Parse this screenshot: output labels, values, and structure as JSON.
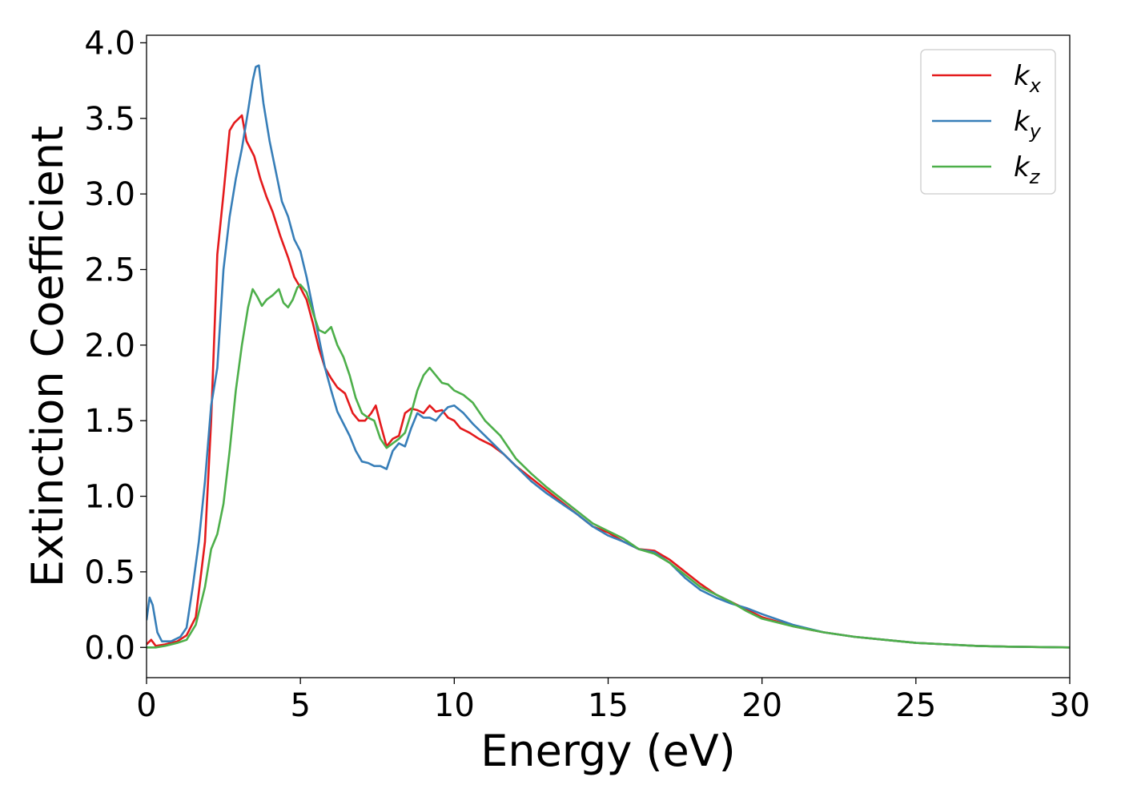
{
  "chart_data": {
    "type": "line",
    "xlabel": "Energy (eV)",
    "ylabel": "Extinction Coefficient",
    "xlim": [
      0,
      30
    ],
    "ylim": [
      -0.2,
      4.05
    ],
    "xticks": [
      "0",
      "5",
      "10",
      "15",
      "20",
      "25",
      "30"
    ],
    "yticks": [
      "0.0",
      "0.5",
      "1.0",
      "1.5",
      "2.0",
      "2.5",
      "3.0",
      "3.5",
      "4.0"
    ],
    "grid": false,
    "legend_position": "top-right",
    "series": [
      {
        "name": "k",
        "subscript": "x",
        "color": "#e41a1c",
        "points": [
          [
            0,
            0.02
          ],
          [
            0.15,
            0.05
          ],
          [
            0.3,
            0.01
          ],
          [
            0.6,
            0.02
          ],
          [
            1.0,
            0.04
          ],
          [
            1.3,
            0.08
          ],
          [
            1.6,
            0.2
          ],
          [
            1.9,
            0.7
          ],
          [
            2.1,
            1.5
          ],
          [
            2.3,
            2.6
          ],
          [
            2.5,
            3.0
          ],
          [
            2.7,
            3.42
          ],
          [
            2.85,
            3.47
          ],
          [
            3.0,
            3.5
          ],
          [
            3.1,
            3.52
          ],
          [
            3.25,
            3.35
          ],
          [
            3.5,
            3.25
          ],
          [
            3.7,
            3.1
          ],
          [
            3.9,
            2.98
          ],
          [
            4.1,
            2.88
          ],
          [
            4.35,
            2.72
          ],
          [
            4.6,
            2.58
          ],
          [
            4.8,
            2.45
          ],
          [
            5.0,
            2.38
          ],
          [
            5.2,
            2.3
          ],
          [
            5.4,
            2.15
          ],
          [
            5.6,
            1.98
          ],
          [
            5.8,
            1.85
          ],
          [
            6.0,
            1.78
          ],
          [
            6.2,
            1.72
          ],
          [
            6.45,
            1.68
          ],
          [
            6.7,
            1.55
          ],
          [
            6.9,
            1.5
          ],
          [
            7.1,
            1.5
          ],
          [
            7.3,
            1.55
          ],
          [
            7.45,
            1.6
          ],
          [
            7.6,
            1.48
          ],
          [
            7.8,
            1.33
          ],
          [
            8.0,
            1.38
          ],
          [
            8.2,
            1.4
          ],
          [
            8.4,
            1.55
          ],
          [
            8.6,
            1.58
          ],
          [
            8.8,
            1.57
          ],
          [
            9.0,
            1.55
          ],
          [
            9.2,
            1.6
          ],
          [
            9.4,
            1.56
          ],
          [
            9.6,
            1.57
          ],
          [
            9.8,
            1.52
          ],
          [
            10.0,
            1.5
          ],
          [
            10.2,
            1.45
          ],
          [
            10.5,
            1.42
          ],
          [
            10.8,
            1.38
          ],
          [
            11.2,
            1.34
          ],
          [
            11.6,
            1.28
          ],
          [
            12.0,
            1.2
          ],
          [
            12.5,
            1.12
          ],
          [
            13.0,
            1.04
          ],
          [
            13.5,
            0.96
          ],
          [
            14.0,
            0.88
          ],
          [
            14.5,
            0.8
          ],
          [
            15.0,
            0.76
          ],
          [
            15.5,
            0.7
          ],
          [
            16.0,
            0.65
          ],
          [
            16.5,
            0.64
          ],
          [
            17.0,
            0.58
          ],
          [
            17.5,
            0.5
          ],
          [
            18.0,
            0.42
          ],
          [
            18.5,
            0.35
          ],
          [
            19.0,
            0.3
          ],
          [
            19.5,
            0.25
          ],
          [
            20.0,
            0.2
          ],
          [
            21.0,
            0.14
          ],
          [
            22.0,
            0.1
          ],
          [
            23.0,
            0.07
          ],
          [
            24.0,
            0.05
          ],
          [
            25.0,
            0.03
          ],
          [
            26.0,
            0.02
          ],
          [
            27.0,
            0.01
          ],
          [
            28.0,
            0.005
          ],
          [
            30.0,
            0.0
          ]
        ]
      },
      {
        "name": "k",
        "subscript": "y",
        "color": "#377eb8",
        "points": [
          [
            0,
            0.18
          ],
          [
            0.1,
            0.33
          ],
          [
            0.2,
            0.28
          ],
          [
            0.35,
            0.1
          ],
          [
            0.5,
            0.04
          ],
          [
            0.8,
            0.04
          ],
          [
            1.1,
            0.07
          ],
          [
            1.3,
            0.13
          ],
          [
            1.5,
            0.4
          ],
          [
            1.7,
            0.7
          ],
          [
            1.9,
            1.1
          ],
          [
            2.1,
            1.6
          ],
          [
            2.3,
            1.85
          ],
          [
            2.5,
            2.5
          ],
          [
            2.7,
            2.85
          ],
          [
            2.9,
            3.1
          ],
          [
            3.1,
            3.3
          ],
          [
            3.3,
            3.55
          ],
          [
            3.45,
            3.75
          ],
          [
            3.55,
            3.84
          ],
          [
            3.65,
            3.85
          ],
          [
            3.8,
            3.6
          ],
          [
            4.0,
            3.35
          ],
          [
            4.2,
            3.15
          ],
          [
            4.4,
            2.95
          ],
          [
            4.6,
            2.85
          ],
          [
            4.8,
            2.7
          ],
          [
            5.0,
            2.62
          ],
          [
            5.2,
            2.45
          ],
          [
            5.4,
            2.25
          ],
          [
            5.6,
            2.05
          ],
          [
            5.8,
            1.85
          ],
          [
            6.0,
            1.7
          ],
          [
            6.2,
            1.56
          ],
          [
            6.4,
            1.48
          ],
          [
            6.6,
            1.4
          ],
          [
            6.8,
            1.3
          ],
          [
            7.0,
            1.23
          ],
          [
            7.2,
            1.22
          ],
          [
            7.4,
            1.2
          ],
          [
            7.6,
            1.2
          ],
          [
            7.8,
            1.18
          ],
          [
            8.0,
            1.3
          ],
          [
            8.2,
            1.35
          ],
          [
            8.4,
            1.33
          ],
          [
            8.6,
            1.45
          ],
          [
            8.8,
            1.55
          ],
          [
            9.0,
            1.52
          ],
          [
            9.2,
            1.52
          ],
          [
            9.4,
            1.5
          ],
          [
            9.6,
            1.55
          ],
          [
            9.8,
            1.59
          ],
          [
            10.0,
            1.6
          ],
          [
            10.3,
            1.55
          ],
          [
            10.6,
            1.48
          ],
          [
            11.0,
            1.4
          ],
          [
            11.5,
            1.3
          ],
          [
            12.0,
            1.2
          ],
          [
            12.5,
            1.1
          ],
          [
            13.0,
            1.02
          ],
          [
            13.5,
            0.95
          ],
          [
            14.0,
            0.88
          ],
          [
            14.5,
            0.8
          ],
          [
            15.0,
            0.74
          ],
          [
            15.5,
            0.7
          ],
          [
            16.0,
            0.65
          ],
          [
            16.5,
            0.63
          ],
          [
            17.0,
            0.56
          ],
          [
            17.5,
            0.46
          ],
          [
            18.0,
            0.38
          ],
          [
            18.5,
            0.33
          ],
          [
            19.0,
            0.29
          ],
          [
            19.5,
            0.26
          ],
          [
            20.0,
            0.22
          ],
          [
            21.0,
            0.15
          ],
          [
            22.0,
            0.1
          ],
          [
            23.0,
            0.07
          ],
          [
            24.0,
            0.05
          ],
          [
            25.0,
            0.03
          ],
          [
            26.0,
            0.02
          ],
          [
            27.0,
            0.01
          ],
          [
            28.0,
            0.005
          ],
          [
            30.0,
            0.0
          ]
        ]
      },
      {
        "name": "k",
        "subscript": "z",
        "color": "#4daf4a",
        "points": [
          [
            0,
            0.0
          ],
          [
            0.3,
            0.0
          ],
          [
            0.6,
            0.01
          ],
          [
            1.0,
            0.03
          ],
          [
            1.3,
            0.05
          ],
          [
            1.6,
            0.15
          ],
          [
            1.9,
            0.4
          ],
          [
            2.1,
            0.65
          ],
          [
            2.3,
            0.75
          ],
          [
            2.5,
            0.95
          ],
          [
            2.7,
            1.3
          ],
          [
            2.9,
            1.7
          ],
          [
            3.1,
            2.0
          ],
          [
            3.3,
            2.25
          ],
          [
            3.45,
            2.37
          ],
          [
            3.6,
            2.32
          ],
          [
            3.75,
            2.26
          ],
          [
            3.9,
            2.3
          ],
          [
            4.1,
            2.33
          ],
          [
            4.3,
            2.37
          ],
          [
            4.45,
            2.28
          ],
          [
            4.6,
            2.25
          ],
          [
            4.75,
            2.3
          ],
          [
            4.9,
            2.38
          ],
          [
            5.0,
            2.4
          ],
          [
            5.2,
            2.35
          ],
          [
            5.4,
            2.22
          ],
          [
            5.6,
            2.1
          ],
          [
            5.8,
            2.08
          ],
          [
            6.0,
            2.12
          ],
          [
            6.2,
            2.0
          ],
          [
            6.4,
            1.92
          ],
          [
            6.6,
            1.8
          ],
          [
            6.8,
            1.65
          ],
          [
            7.0,
            1.55
          ],
          [
            7.2,
            1.52
          ],
          [
            7.4,
            1.5
          ],
          [
            7.6,
            1.38
          ],
          [
            7.8,
            1.32
          ],
          [
            8.0,
            1.35
          ],
          [
            8.2,
            1.38
          ],
          [
            8.4,
            1.42
          ],
          [
            8.6,
            1.55
          ],
          [
            8.8,
            1.7
          ],
          [
            9.0,
            1.8
          ],
          [
            9.2,
            1.85
          ],
          [
            9.4,
            1.8
          ],
          [
            9.6,
            1.75
          ],
          [
            9.8,
            1.74
          ],
          [
            10.0,
            1.7
          ],
          [
            10.3,
            1.67
          ],
          [
            10.6,
            1.62
          ],
          [
            11.0,
            1.5
          ],
          [
            11.5,
            1.4
          ],
          [
            12.0,
            1.25
          ],
          [
            12.5,
            1.15
          ],
          [
            13.0,
            1.06
          ],
          [
            13.5,
            0.98
          ],
          [
            14.0,
            0.9
          ],
          [
            14.5,
            0.82
          ],
          [
            15.0,
            0.77
          ],
          [
            15.5,
            0.72
          ],
          [
            16.0,
            0.65
          ],
          [
            16.5,
            0.62
          ],
          [
            17.0,
            0.56
          ],
          [
            17.5,
            0.48
          ],
          [
            18.0,
            0.4
          ],
          [
            18.5,
            0.35
          ],
          [
            19.0,
            0.3
          ],
          [
            19.5,
            0.24
          ],
          [
            20.0,
            0.19
          ],
          [
            21.0,
            0.14
          ],
          [
            22.0,
            0.1
          ],
          [
            23.0,
            0.07
          ],
          [
            24.0,
            0.05
          ],
          [
            25.0,
            0.03
          ],
          [
            26.0,
            0.02
          ],
          [
            27.0,
            0.01
          ],
          [
            28.0,
            0.005
          ],
          [
            30.0,
            0.0
          ]
        ]
      }
    ]
  }
}
